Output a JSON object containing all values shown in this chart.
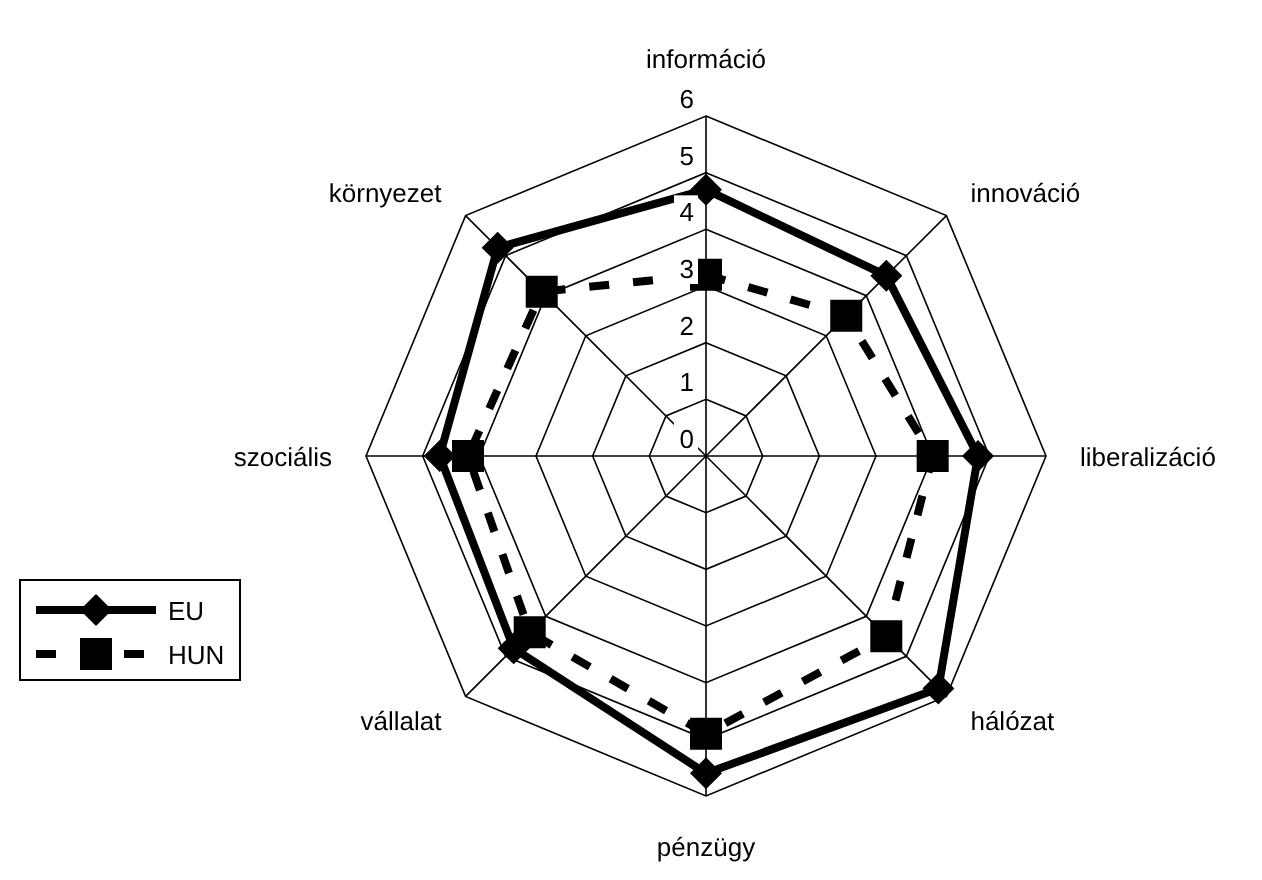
{
  "chart_data": {
    "type": "radar",
    "categories": [
      "információ",
      "innováció",
      "liberalizáció",
      "hálózat",
      "pénzügy",
      "vállalat",
      "szociális",
      "környezet"
    ],
    "series": [
      {
        "name": "EU",
        "color": "#000000",
        "values": [
          4.7,
          4.5,
          4.8,
          5.8,
          5.6,
          4.8,
          4.7,
          5.2
        ],
        "marker": "diamond",
        "line_style": "solid"
      },
      {
        "name": "HUN",
        "color": "#000000",
        "values": [
          3.2,
          3.5,
          4.0,
          4.5,
          4.9,
          4.4,
          4.2,
          4.1
        ],
        "marker": "square",
        "line_style": "dashed"
      }
    ],
    "ylim": [
      0,
      6
    ],
    "yticks": [
      0,
      1,
      2,
      3,
      4,
      5,
      6
    ],
    "grid": true,
    "legend": "bottom left"
  }
}
